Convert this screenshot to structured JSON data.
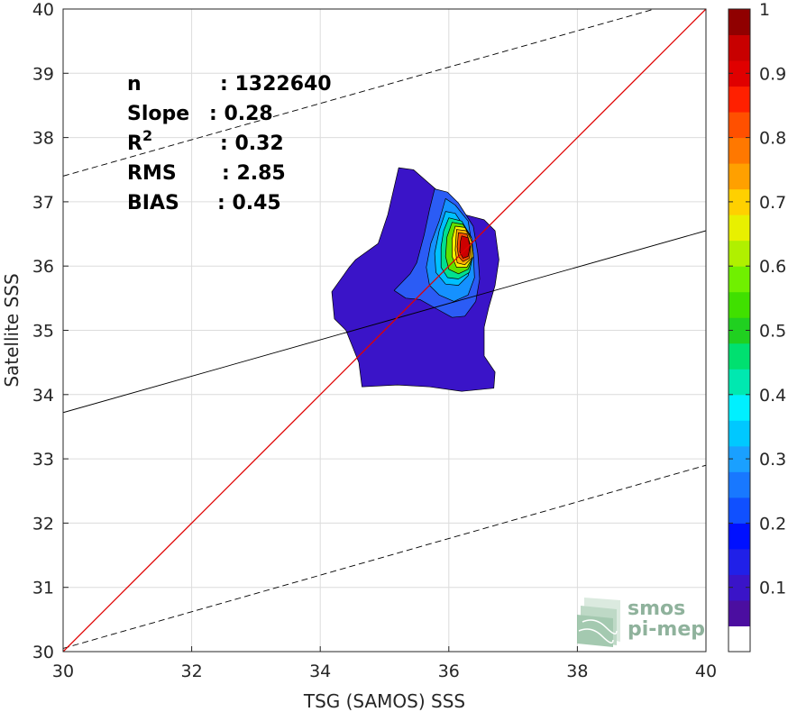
{
  "chart_data": {
    "type": "heatmap",
    "xlabel": "TSG (SAMOS) SSS",
    "ylabel": "Satellite SSS",
    "xlim": [
      30,
      40
    ],
    "ylim": [
      30,
      40
    ],
    "x_ticks": [
      30,
      32,
      34,
      36,
      38,
      40
    ],
    "y_ticks": [
      30,
      31,
      32,
      33,
      34,
      35,
      36,
      37,
      38,
      39,
      40
    ],
    "grid": true,
    "stats": [
      {
        "label": "n",
        "value": ": 1322640"
      },
      {
        "label": "Slope",
        "value": ": 0.28"
      },
      {
        "label": "R",
        "sup": "2",
        "value": ": 0.32"
      },
      {
        "label": "RMS",
        "value": ": 2.85"
      },
      {
        "label": "BIAS",
        "value": ": 0.45"
      }
    ],
    "identity_line": {
      "from": [
        30,
        30
      ],
      "to": [
        40,
        40
      ],
      "color": "#e00000"
    },
    "regression_line": {
      "from": [
        30,
        33.72
      ],
      "to": [
        40,
        36.55
      ],
      "color": "#000000"
    },
    "envelope_lines": [
      {
        "from": [
          30,
          37.4
        ],
        "to": [
          39.2,
          40
        ],
        "style": "dashed"
      },
      {
        "from": [
          30,
          30.05
        ],
        "to": [
          40,
          32.9
        ],
        "style": "dashed"
      }
    ],
    "density_contours": [
      {
        "level": 0.05,
        "color": "#3a14c8",
        "polygon": [
          [
            35.22,
            37.53
          ],
          [
            35.45,
            37.5
          ],
          [
            35.62,
            37.35
          ],
          [
            35.85,
            37.15
          ],
          [
            36.0,
            37.0
          ],
          [
            36.25,
            36.8
          ],
          [
            36.55,
            36.72
          ],
          [
            36.72,
            36.55
          ],
          [
            36.78,
            36.1
          ],
          [
            36.72,
            35.7
          ],
          [
            36.62,
            35.35
          ],
          [
            36.55,
            35.05
          ],
          [
            36.55,
            34.6
          ],
          [
            36.72,
            34.35
          ],
          [
            36.7,
            34.1
          ],
          [
            36.2,
            34.05
          ],
          [
            35.7,
            34.12
          ],
          [
            35.2,
            34.15
          ],
          [
            34.65,
            34.12
          ],
          [
            34.6,
            34.5
          ],
          [
            34.4,
            35.0
          ],
          [
            34.22,
            35.18
          ],
          [
            34.18,
            35.6
          ],
          [
            34.45,
            35.98
          ],
          [
            34.55,
            36.1
          ],
          [
            34.9,
            36.35
          ],
          [
            35.05,
            36.8
          ],
          [
            35.22,
            37.53
          ]
        ]
      },
      {
        "level": 0.15,
        "color": "#2b5cf5",
        "polygon": [
          [
            35.78,
            37.2
          ],
          [
            35.98,
            37.15
          ],
          [
            36.15,
            36.98
          ],
          [
            36.38,
            36.62
          ],
          [
            36.45,
            36.2
          ],
          [
            36.48,
            35.8
          ],
          [
            36.42,
            35.45
          ],
          [
            36.25,
            35.22
          ],
          [
            36.05,
            35.2
          ],
          [
            35.78,
            35.35
          ],
          [
            35.55,
            35.48
          ],
          [
            35.33,
            35.5
          ],
          [
            35.15,
            35.62
          ],
          [
            35.4,
            35.88
          ],
          [
            35.5,
            36.05
          ],
          [
            35.62,
            36.5
          ],
          [
            35.7,
            36.88
          ],
          [
            35.78,
            37.2
          ]
        ]
      },
      {
        "level": 0.25,
        "color": "#1591ff",
        "polygon": [
          [
            35.95,
            37.05
          ],
          [
            36.1,
            36.95
          ],
          [
            36.3,
            36.7
          ],
          [
            36.38,
            36.2
          ],
          [
            36.4,
            35.82
          ],
          [
            36.3,
            35.55
          ],
          [
            36.08,
            35.45
          ],
          [
            35.85,
            35.55
          ],
          [
            35.7,
            35.7
          ],
          [
            35.65,
            35.98
          ],
          [
            35.72,
            36.35
          ],
          [
            35.85,
            36.7
          ],
          [
            35.95,
            37.05
          ]
        ]
      },
      {
        "level": 0.35,
        "color": "#00c0ff",
        "polygon": [
          [
            35.95,
            36.85
          ],
          [
            36.1,
            36.82
          ],
          [
            36.28,
            36.55
          ],
          [
            36.35,
            36.15
          ],
          [
            36.3,
            35.85
          ],
          [
            36.15,
            35.7
          ],
          [
            35.95,
            35.72
          ],
          [
            35.8,
            35.9
          ],
          [
            35.78,
            36.2
          ],
          [
            35.85,
            36.55
          ],
          [
            35.95,
            36.85
          ]
        ]
      },
      {
        "level": 0.45,
        "color": "#00e090",
        "polygon": [
          [
            36.0,
            36.75
          ],
          [
            36.2,
            36.7
          ],
          [
            36.32,
            36.5
          ],
          [
            36.38,
            36.2
          ],
          [
            36.32,
            35.9
          ],
          [
            36.15,
            35.8
          ],
          [
            35.98,
            35.82
          ],
          [
            35.88,
            35.98
          ],
          [
            35.88,
            36.3
          ],
          [
            35.92,
            36.55
          ],
          [
            36.0,
            36.75
          ]
        ]
      },
      {
        "level": 0.55,
        "color": "#60e000",
        "polygon": [
          [
            36.05,
            36.68
          ],
          [
            36.22,
            36.65
          ],
          [
            36.35,
            36.45
          ],
          [
            36.38,
            36.15
          ],
          [
            36.3,
            35.95
          ],
          [
            36.15,
            35.88
          ],
          [
            36.0,
            35.95
          ],
          [
            35.95,
            36.15
          ],
          [
            35.97,
            36.45
          ],
          [
            36.05,
            36.68
          ]
        ]
      },
      {
        "level": 0.65,
        "color": "#fff000",
        "polygon": [
          [
            36.1,
            36.62
          ],
          [
            36.25,
            36.6
          ],
          [
            36.36,
            36.42
          ],
          [
            36.38,
            36.15
          ],
          [
            36.28,
            35.98
          ],
          [
            36.12,
            35.98
          ],
          [
            36.05,
            36.15
          ],
          [
            36.05,
            36.42
          ],
          [
            36.1,
            36.62
          ]
        ]
      },
      {
        "level": 0.72,
        "color": "#ffb000",
        "polygon": [
          [
            36.12,
            36.57
          ],
          [
            36.27,
            36.55
          ],
          [
            36.36,
            36.38
          ],
          [
            36.35,
            36.12
          ],
          [
            36.25,
            36.02
          ],
          [
            36.13,
            36.05
          ],
          [
            36.1,
            36.25
          ],
          [
            36.12,
            36.57
          ]
        ]
      },
      {
        "level": 0.82,
        "color": "#ff5000",
        "polygon": [
          [
            36.15,
            36.52
          ],
          [
            36.28,
            36.5
          ],
          [
            36.34,
            36.32
          ],
          [
            36.32,
            36.12
          ],
          [
            36.22,
            36.07
          ],
          [
            36.15,
            36.15
          ],
          [
            36.13,
            36.3
          ],
          [
            36.15,
            36.52
          ]
        ]
      },
      {
        "level": 0.92,
        "color": "#cc0000",
        "polygon": [
          [
            36.2,
            36.47
          ],
          [
            36.3,
            36.44
          ],
          [
            36.33,
            36.3
          ],
          [
            36.3,
            36.15
          ],
          [
            36.22,
            36.12
          ],
          [
            36.17,
            36.22
          ],
          [
            36.18,
            36.38
          ],
          [
            36.2,
            36.47
          ]
        ]
      }
    ],
    "colorbar": {
      "min": 0,
      "max": 1,
      "ticks": [
        0.1,
        0.2,
        0.3,
        0.4,
        0.5,
        0.6,
        0.7,
        0.8,
        0.9,
        1
      ],
      "colors": [
        "#ffffff",
        "#4b0ea0",
        "#3a14c8",
        "#2020e8",
        "#0010ff",
        "#1050ff",
        "#1878ff",
        "#1aa0ff",
        "#00c8ff",
        "#00f0ff",
        "#00e8b0",
        "#00e070",
        "#20d020",
        "#40e000",
        "#70f000",
        "#b0f000",
        "#e8f000",
        "#ffd000",
        "#ffa000",
        "#ff7800",
        "#ff5000",
        "#ff2000",
        "#e00000",
        "#c80000",
        "#900000"
      ]
    }
  },
  "logo": {
    "line1": "smos",
    "line2": "pi-mep"
  }
}
